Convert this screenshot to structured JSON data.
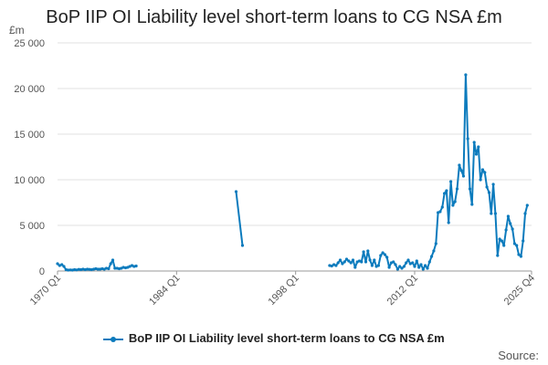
{
  "source_label": "Source:",
  "chart_data": {
    "type": "line",
    "title": "BoP IIP OI Liability level short-term loans to CG NSA £m",
    "ylabel": "£m",
    "xlabel": "",
    "ylim": [
      0,
      25000
    ],
    "yticks": [
      "0",
      "5 000",
      "10 000",
      "15 000",
      "20 000",
      "25 000"
    ],
    "xticks": [
      "1970 Q1",
      "1984 Q1",
      "1998 Q1",
      "2012 Q1",
      "2025 Q4"
    ],
    "x_range": [
      "1970 Q1",
      "2025 Q4"
    ],
    "grid": "horizontal",
    "legend_position": "bottom",
    "color": "#0c7bbd",
    "series": [
      {
        "name": "BoP IIP OI Liability level short-term loans to CG NSA £m",
        "segments": [
          [
            [
              "1970 Q1",
              800
            ],
            [
              "1970 Q2",
              600
            ],
            [
              "1970 Q3",
              700
            ],
            [
              "1970 Q4",
              500
            ],
            [
              "1971 Q1",
              150
            ],
            [
              "1971 Q2",
              100
            ],
            [
              "1971 Q3",
              120
            ],
            [
              "1971 Q4",
              100
            ],
            [
              "1972 Q1",
              150
            ],
            [
              "1972 Q2",
              120
            ],
            [
              "1972 Q3",
              180
            ],
            [
              "1972 Q4",
              150
            ],
            [
              "1973 Q1",
              200
            ],
            [
              "1973 Q2",
              150
            ],
            [
              "1973 Q3",
              200
            ],
            [
              "1973 Q4",
              180
            ],
            [
              "1974 Q1",
              150
            ],
            [
              "1974 Q2",
              200
            ],
            [
              "1974 Q3",
              250
            ],
            [
              "1974 Q4",
              200
            ],
            [
              "1975 Q1",
              200
            ],
            [
              "1975 Q2",
              250
            ],
            [
              "1975 Q3",
              200
            ],
            [
              "1975 Q4",
              300
            ],
            [
              "1976 Q1",
              250
            ],
            [
              "1976 Q2",
              800
            ],
            [
              "1976 Q3",
              1200
            ],
            [
              "1976 Q4",
              300
            ],
            [
              "1977 Q1",
              300
            ],
            [
              "1977 Q2",
              250
            ],
            [
              "1977 Q3",
              300
            ],
            [
              "1977 Q4",
              400
            ],
            [
              "1978 Q1",
              350
            ],
            [
              "1978 Q2",
              400
            ],
            [
              "1978 Q3",
              500
            ],
            [
              "1978 Q4",
              600
            ],
            [
              "1979 Q1",
              500
            ],
            [
              "1979 Q2",
              550
            ]
          ],
          [
            [
              "1991 Q1",
              8700
            ],
            [
              "1991 Q4",
              2800
            ]
          ],
          [
            [
              "2002 Q1",
              600
            ],
            [
              "2002 Q2",
              550
            ],
            [
              "2002 Q3",
              700
            ],
            [
              "2002 Q4",
              600
            ],
            [
              "2003 Q1",
              900
            ],
            [
              "2003 Q2",
              1200
            ],
            [
              "2003 Q3",
              800
            ],
            [
              "2003 Q4",
              1000
            ],
            [
              "2004 Q1",
              1300
            ],
            [
              "2004 Q2",
              1100
            ],
            [
              "2004 Q3",
              900
            ],
            [
              "2004 Q4",
              1200
            ],
            [
              "2005 Q1",
              400
            ],
            [
              "2005 Q2",
              1000
            ],
            [
              "2005 Q3",
              1100
            ],
            [
              "2005 Q4",
              1000
            ],
            [
              "2006 Q1",
              2100
            ],
            [
              "2006 Q2",
              1000
            ],
            [
              "2006 Q3",
              2200
            ],
            [
              "2006 Q4",
              1200
            ],
            [
              "2007 Q1",
              600
            ],
            [
              "2007 Q2",
              1200
            ],
            [
              "2007 Q3",
              500
            ],
            [
              "2007 Q4",
              600
            ],
            [
              "2008 Q1",
              1700
            ],
            [
              "2008 Q2",
              2000
            ],
            [
              "2008 Q3",
              1800
            ],
            [
              "2008 Q4",
              1500
            ],
            [
              "2009 Q1",
              400
            ],
            [
              "2009 Q2",
              900
            ],
            [
              "2009 Q3",
              1000
            ],
            [
              "2009 Q4",
              700
            ],
            [
              "2010 Q1",
              200
            ],
            [
              "2010 Q2",
              500
            ],
            [
              "2010 Q3",
              300
            ],
            [
              "2010 Q4",
              500
            ],
            [
              "2011 Q1",
              900
            ],
            [
              "2011 Q2",
              1200
            ],
            [
              "2011 Q3",
              800
            ],
            [
              "2011 Q4",
              900
            ],
            [
              "2012 Q1",
              500
            ],
            [
              "2012 Q2",
              1100
            ],
            [
              "2012 Q3",
              400
            ],
            [
              "2012 Q4",
              700
            ],
            [
              "2013 Q1",
              200
            ],
            [
              "2013 Q2",
              600
            ],
            [
              "2013 Q3",
              300
            ],
            [
              "2013 Q4",
              1000
            ],
            [
              "2014 Q1",
              1600
            ],
            [
              "2014 Q2",
              2200
            ],
            [
              "2014 Q3",
              3000
            ],
            [
              "2014 Q4",
              6400
            ],
            [
              "2015 Q1",
              6500
            ],
            [
              "2015 Q2",
              7000
            ],
            [
              "2015 Q3",
              8500
            ],
            [
              "2015 Q4",
              8800
            ],
            [
              "2016 Q1",
              5300
            ],
            [
              "2016 Q2",
              9800
            ],
            [
              "2016 Q3",
              7200
            ],
            [
              "2016 Q4",
              7600
            ],
            [
              "2017 Q1",
              9000
            ],
            [
              "2017 Q2",
              11600
            ],
            [
              "2017 Q3",
              11000
            ],
            [
              "2017 Q4",
              10400
            ],
            [
              "2018 Q1",
              21500
            ],
            [
              "2018 Q2",
              14500
            ],
            [
              "2018 Q3",
              9000
            ],
            [
              "2018 Q4",
              7300
            ],
            [
              "2019 Q1",
              14100
            ],
            [
              "2019 Q2",
              12800
            ],
            [
              "2019 Q3",
              13600
            ],
            [
              "2019 Q4",
              10000
            ],
            [
              "2020 Q1",
              11100
            ],
            [
              "2020 Q2",
              10800
            ],
            [
              "2020 Q3",
              9200
            ],
            [
              "2020 Q4",
              8600
            ],
            [
              "2021 Q1",
              6300
            ],
            [
              "2021 Q2",
              9500
            ],
            [
              "2021 Q3",
              6300
            ],
            [
              "2021 Q4",
              1700
            ],
            [
              "2022 Q1",
              3500
            ],
            [
              "2022 Q2",
              3300
            ],
            [
              "2022 Q3",
              2800
            ],
            [
              "2022 Q4",
              4500
            ],
            [
              "2023 Q1",
              6000
            ],
            [
              "2023 Q2",
              5200
            ],
            [
              "2023 Q3",
              4600
            ],
            [
              "2023 Q4",
              3000
            ],
            [
              "2024 Q1",
              2800
            ],
            [
              "2024 Q2",
              1800
            ],
            [
              "2024 Q3",
              1600
            ],
            [
              "2024 Q4",
              3300
            ],
            [
              "2025 Q1",
              6300
            ],
            [
              "2025 Q2",
              7200
            ]
          ]
        ]
      }
    ]
  }
}
